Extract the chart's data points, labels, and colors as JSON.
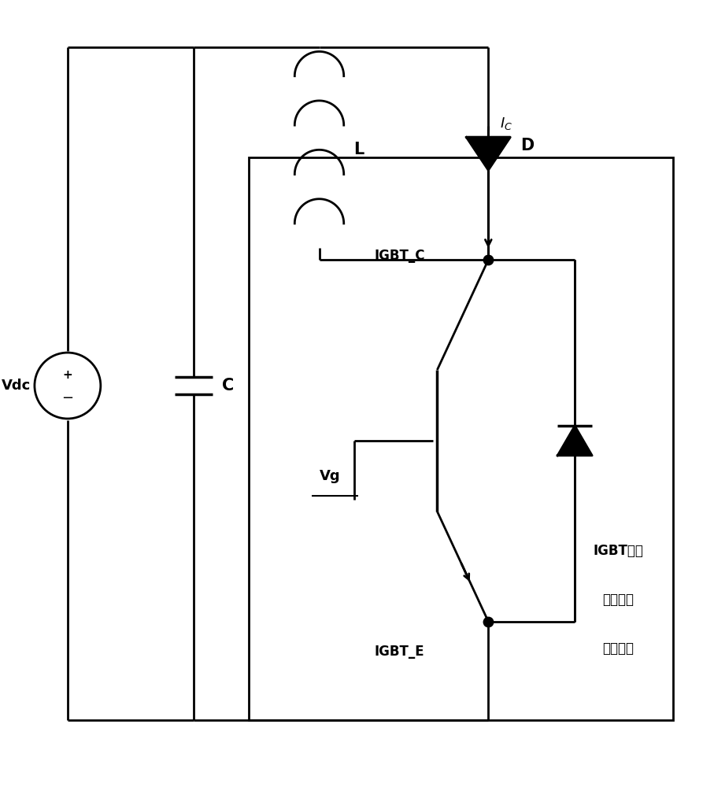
{
  "bg_color": "#ffffff",
  "lc": "#000000",
  "lw": 2.0,
  "fw": 9.07,
  "fh": 10.0,
  "labels": {
    "Vdc": "Vdc",
    "C": "C",
    "L": "L",
    "D": "D",
    "Ic": "I",
    "Ic_sub": "C",
    "IGBT_C": "IGBT_C",
    "IGBT_E": "IGBT_E",
    "Vg": "Vg",
    "box1": "IGBT模块",
    "box2": "结温在线",
    "box3": "检测系统"
  }
}
